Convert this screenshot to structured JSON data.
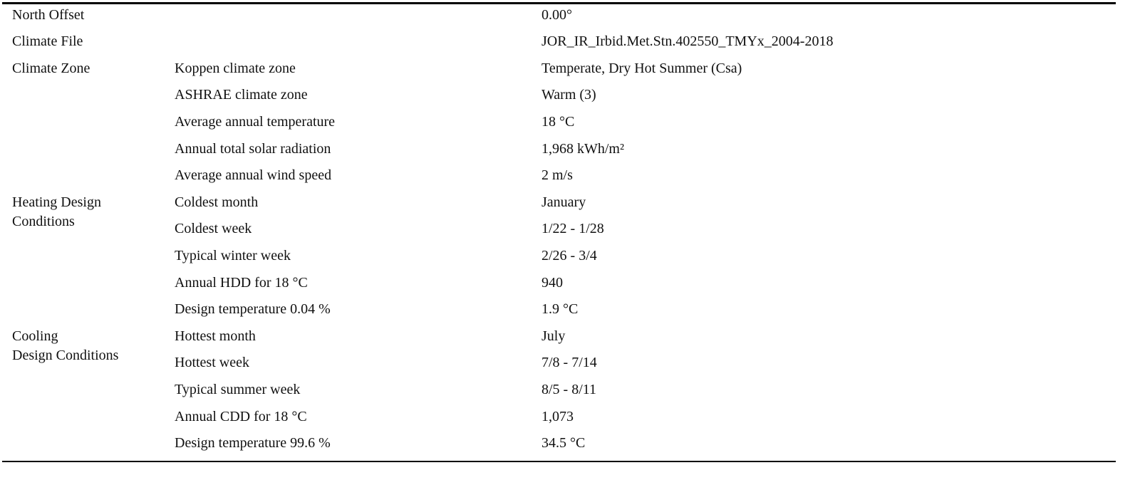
{
  "table": {
    "rows": [
      {
        "group": [
          "North Offset"
        ],
        "value": "0.00°"
      },
      {
        "group": [
          "Climate File"
        ],
        "value": "JOR_IR_Irbid.Met.Stn.402550_TMYx_2004-2018"
      },
      {
        "group": [
          "Climate Zone"
        ],
        "label": "Koppen climate zone",
        "value": "Temperate, Dry Hot Summer (Csa)"
      },
      {
        "label": "ASHRAE climate zone",
        "value": "Warm (3)"
      },
      {
        "label": "Average annual temperature",
        "value": "18 °C"
      },
      {
        "label": "Annual total solar radiation",
        "value": "1,968 kWh/m²"
      },
      {
        "label": "Average annual wind speed",
        "value": "2 m/s"
      },
      {
        "group": [
          "Heating Design",
          "Conditions"
        ],
        "label": "Coldest month",
        "value": "January"
      },
      {
        "label": "Coldest week",
        "value": "1/22 - 1/28"
      },
      {
        "label": "Typical winter week",
        "value": "2/26 - 3/4"
      },
      {
        "label": "Annual HDD for 18 °C",
        "value": "940"
      },
      {
        "label": "Design temperature 0.04 %",
        "value": "1.9 °C"
      },
      {
        "group": [
          "Cooling",
          "Design Conditions"
        ],
        "label": "Hottest month",
        "value": "July"
      },
      {
        "label": "Hottest week",
        "value": "7/8 - 7/14"
      },
      {
        "label": "Typical summer week",
        "value": "8/5 - 8/11"
      },
      {
        "label": "Annual CDD for 18 °C",
        "value": "1,073"
      },
      {
        "label": "Design temperature 99.6 %",
        "value": "34.5 °C"
      }
    ]
  }
}
